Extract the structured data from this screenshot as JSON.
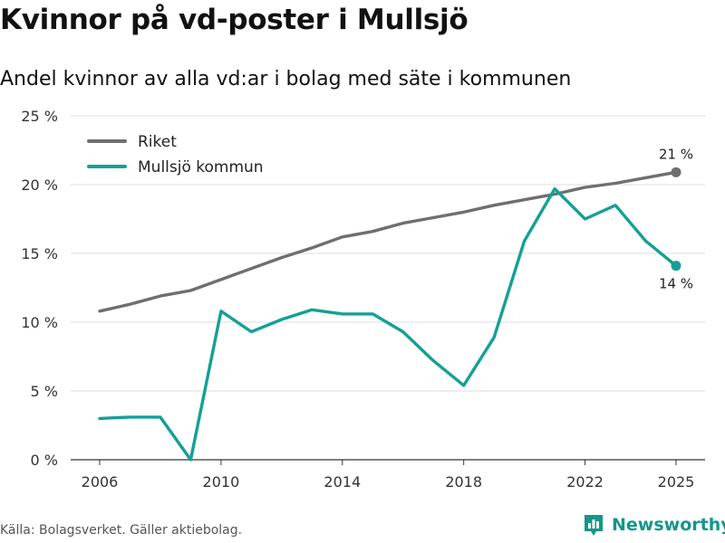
{
  "title": "Kvinnor på vd-poster i Mullsjö",
  "subtitle": "Andel kvinnor av alla vd:ar i bolag med säte i kommunen",
  "source": "Källa: Bolagsverket. Gäller aktiebolag.",
  "brand": {
    "name": "Newsworthy",
    "icon": "newsworthy-logo-icon",
    "color": "#14968a"
  },
  "chart_data": {
    "type": "line",
    "x": [
      2006,
      2007,
      2008,
      2009,
      2010,
      2011,
      2012,
      2013,
      2014,
      2015,
      2016,
      2017,
      2018,
      2019,
      2020,
      2021,
      2022,
      2023,
      2024,
      2025
    ],
    "series": [
      {
        "name": "Riket",
        "color": "#6e6e73",
        "values": [
          10.8,
          11.3,
          11.9,
          12.3,
          13.1,
          13.9,
          14.7,
          15.4,
          16.2,
          16.6,
          17.2,
          17.6,
          18.0,
          18.5,
          18.9,
          19.3,
          19.8,
          20.1,
          20.5,
          20.9
        ],
        "end_label": "21 %"
      },
      {
        "name": "Mullsjö kommun",
        "color": "#14a096",
        "values": [
          3.0,
          3.1,
          3.1,
          0.0,
          10.8,
          9.3,
          10.2,
          10.9,
          10.6,
          10.6,
          9.3,
          7.2,
          5.4,
          8.9,
          15.9,
          19.7,
          17.5,
          18.5,
          15.9,
          14.1
        ],
        "end_label": "14 %"
      }
    ],
    "xlabel": "",
    "ylabel": "",
    "ylim": [
      0,
      25
    ],
    "yticks": [
      0,
      5,
      10,
      15,
      20,
      25
    ],
    "ytick_labels": [
      "0 %",
      "5 %",
      "10 %",
      "15 %",
      "20 %",
      "25 %"
    ],
    "xticks": [
      2006,
      2010,
      2014,
      2018,
      2022,
      2025
    ],
    "xtick_labels": [
      "2006",
      "2010",
      "2014",
      "2018",
      "2022",
      "2025"
    ],
    "grid": true,
    "legend_position": "top-left"
  }
}
